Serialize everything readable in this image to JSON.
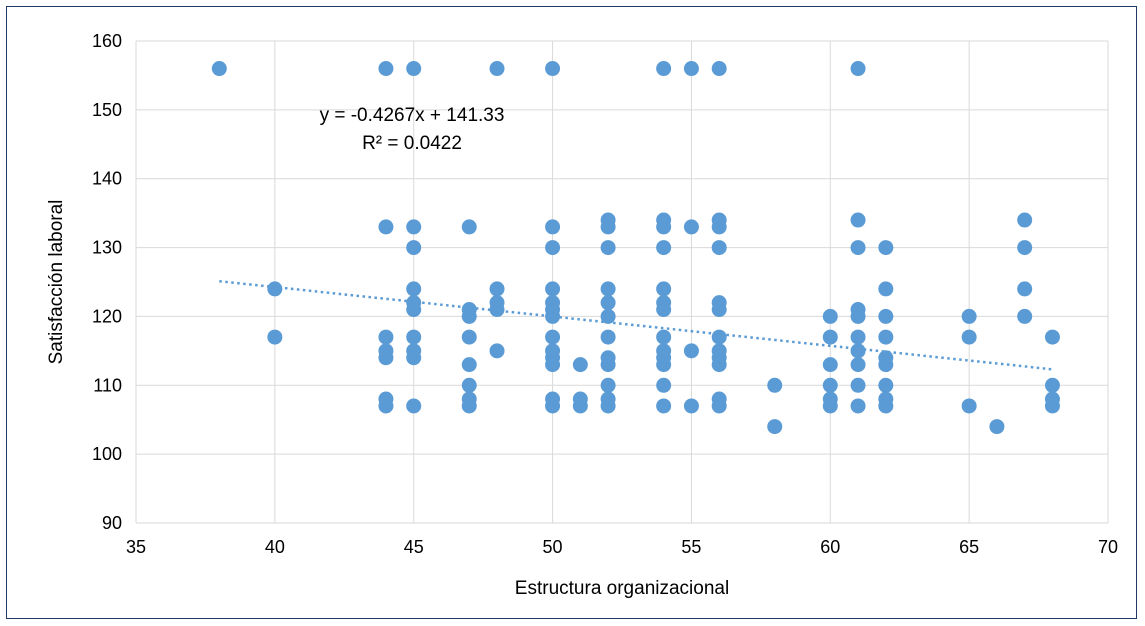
{
  "chart_data": {
    "type": "scatter",
    "title": "",
    "xlabel": "Estructura organizacional",
    "ylabel": "Satisfacción laboral",
    "xlim": [
      35,
      70
    ],
    "ylim": [
      90,
      160
    ],
    "x_ticks": [
      35,
      40,
      45,
      50,
      55,
      60,
      65,
      70
    ],
    "y_ticks": [
      90,
      100,
      110,
      120,
      130,
      140,
      150,
      160
    ],
    "grid": true,
    "legend": "none",
    "point_color": "#5b9bd5",
    "trendline": {
      "type": "linear",
      "slope": -0.4267,
      "intercept": 141.33,
      "x_range": [
        38,
        68
      ],
      "style": "dotted",
      "color": "#5b9bd5",
      "equation_label": "y = -0.4267x + 141.33",
      "r2_label": "R² = 0.0422"
    },
    "points": [
      [
        38,
        156
      ],
      [
        44,
        156
      ],
      [
        45,
        156
      ],
      [
        48,
        156
      ],
      [
        50,
        156
      ],
      [
        54,
        156
      ],
      [
        55,
        156
      ],
      [
        56,
        156
      ],
      [
        61,
        156
      ],
      [
        40,
        124
      ],
      [
        40,
        117
      ],
      [
        44,
        133
      ],
      [
        44,
        117
      ],
      [
        44,
        115
      ],
      [
        44,
        114
      ],
      [
        44,
        108
      ],
      [
        44,
        107
      ],
      [
        45,
        133
      ],
      [
        45,
        130
      ],
      [
        45,
        124
      ],
      [
        45,
        122
      ],
      [
        45,
        121
      ],
      [
        45,
        117
      ],
      [
        45,
        115
      ],
      [
        45,
        114
      ],
      [
        45,
        107
      ],
      [
        47,
        133
      ],
      [
        47,
        121
      ],
      [
        47,
        120
      ],
      [
        47,
        117
      ],
      [
        47,
        113
      ],
      [
        47,
        110
      ],
      [
        47,
        108
      ],
      [
        47,
        107
      ],
      [
        48,
        124
      ],
      [
        48,
        122
      ],
      [
        48,
        121
      ],
      [
        48,
        115
      ],
      [
        50,
        133
      ],
      [
        50,
        130
      ],
      [
        50,
        124
      ],
      [
        50,
        122
      ],
      [
        50,
        121
      ],
      [
        50,
        120
      ],
      [
        50,
        117
      ],
      [
        50,
        115
      ],
      [
        50,
        114
      ],
      [
        50,
        113
      ],
      [
        50,
        108
      ],
      [
        50,
        107
      ],
      [
        51,
        113
      ],
      [
        51,
        108
      ],
      [
        51,
        107
      ],
      [
        52,
        134
      ],
      [
        52,
        133
      ],
      [
        52,
        130
      ],
      [
        52,
        124
      ],
      [
        52,
        122
      ],
      [
        52,
        120
      ],
      [
        52,
        117
      ],
      [
        52,
        114
      ],
      [
        52,
        113
      ],
      [
        52,
        110
      ],
      [
        52,
        108
      ],
      [
        52,
        107
      ],
      [
        54,
        134
      ],
      [
        54,
        133
      ],
      [
        54,
        130
      ],
      [
        54,
        124
      ],
      [
        54,
        122
      ],
      [
        54,
        121
      ],
      [
        54,
        117
      ],
      [
        54,
        115
      ],
      [
        54,
        114
      ],
      [
        54,
        113
      ],
      [
        54,
        110
      ],
      [
        54,
        107
      ],
      [
        55,
        133
      ],
      [
        55,
        115
      ],
      [
        55,
        107
      ],
      [
        56,
        134
      ],
      [
        56,
        133
      ],
      [
        56,
        130
      ],
      [
        56,
        122
      ],
      [
        56,
        121
      ],
      [
        56,
        117
      ],
      [
        56,
        115
      ],
      [
        56,
        114
      ],
      [
        56,
        113
      ],
      [
        56,
        108
      ],
      [
        56,
        107
      ],
      [
        58,
        110
      ],
      [
        58,
        104
      ],
      [
        60,
        120
      ],
      [
        60,
        117
      ],
      [
        60,
        113
      ],
      [
        60,
        110
      ],
      [
        60,
        108
      ],
      [
        60,
        107
      ],
      [
        61,
        134
      ],
      [
        61,
        130
      ],
      [
        61,
        121
      ],
      [
        61,
        120
      ],
      [
        61,
        117
      ],
      [
        61,
        115
      ],
      [
        61,
        113
      ],
      [
        61,
        110
      ],
      [
        61,
        107
      ],
      [
        62,
        130
      ],
      [
        62,
        124
      ],
      [
        62,
        120
      ],
      [
        62,
        117
      ],
      [
        62,
        114
      ],
      [
        62,
        113
      ],
      [
        62,
        110
      ],
      [
        62,
        108
      ],
      [
        62,
        107
      ],
      [
        65,
        120
      ],
      [
        65,
        117
      ],
      [
        65,
        107
      ],
      [
        66,
        104
      ],
      [
        67,
        134
      ],
      [
        67,
        130
      ],
      [
        67,
        124
      ],
      [
        67,
        120
      ],
      [
        68,
        117
      ],
      [
        68,
        110
      ],
      [
        68,
        108
      ],
      [
        68,
        107
      ]
    ]
  }
}
